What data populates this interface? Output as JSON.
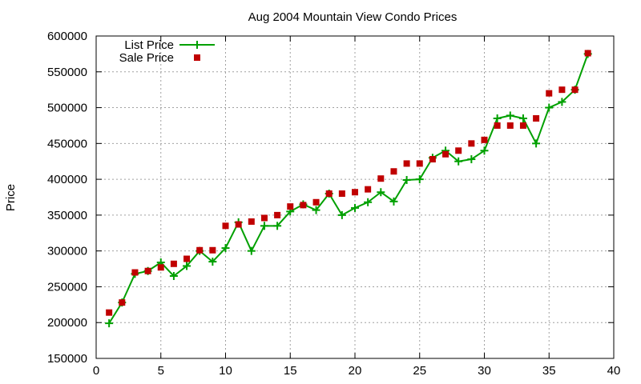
{
  "chart_data": {
    "type": "line",
    "title": "Aug 2004 Mountain View Condo Prices",
    "xlabel": "",
    "ylabel": "Price",
    "xlim": [
      0,
      40
    ],
    "ylim": [
      150000,
      600000
    ],
    "xticks": [
      0,
      5,
      10,
      15,
      20,
      25,
      30,
      35,
      40
    ],
    "yticks": [
      150000,
      200000,
      250000,
      300000,
      350000,
      400000,
      450000,
      500000,
      550000,
      600000
    ],
    "xtick_labels": [
      "0",
      "5",
      "10",
      "15",
      "20",
      "25",
      "30",
      "35",
      "40"
    ],
    "ytick_labels": [
      "150000",
      "200000",
      "250000",
      "300000",
      "350000",
      "400000",
      "450000",
      "500000",
      "550000",
      "600000"
    ],
    "grid": true,
    "legend_position": "top-left",
    "series": [
      {
        "name": "List Price",
        "type": "line",
        "marker": "plus",
        "color": "#00a000",
        "x": [
          1,
          2,
          3,
          4,
          5,
          6,
          7,
          8,
          9,
          10,
          11,
          12,
          13,
          14,
          15,
          16,
          17,
          18,
          19,
          20,
          21,
          22,
          23,
          24,
          25,
          26,
          27,
          28,
          29,
          30,
          31,
          32,
          33,
          34,
          35,
          36,
          37,
          38
        ],
        "values": [
          199000,
          228000,
          268000,
          272000,
          284000,
          265000,
          279000,
          300000,
          285000,
          304000,
          340000,
          300000,
          335000,
          335000,
          355000,
          365000,
          357000,
          380000,
          350000,
          360000,
          368000,
          382000,
          369000,
          399000,
          400000,
          430000,
          440000,
          425000,
          428000,
          440000,
          485000,
          489000,
          485000,
          450000,
          500000,
          508000,
          525000,
          575000
        ]
      },
      {
        "name": "Sale Price",
        "type": "scatter",
        "marker": "square",
        "color": "#c00000",
        "x": [
          1,
          2,
          3,
          4,
          5,
          6,
          7,
          8,
          9,
          10,
          11,
          12,
          13,
          14,
          15,
          16,
          17,
          18,
          19,
          20,
          21,
          22,
          23,
          24,
          25,
          26,
          27,
          28,
          29,
          30,
          31,
          32,
          33,
          34,
          35,
          36,
          37,
          38
        ],
        "values": [
          214000,
          228000,
          270000,
          272000,
          277000,
          282000,
          289000,
          301000,
          301000,
          335000,
          337000,
          341000,
          346000,
          350000,
          362000,
          364000,
          368000,
          380000,
          380000,
          382000,
          386000,
          401000,
          411000,
          422000,
          422000,
          428000,
          435000,
          440000,
          450000,
          455000,
          475000,
          475000,
          475000,
          485000,
          520000,
          525000,
          525000,
          576000
        ]
      }
    ]
  }
}
